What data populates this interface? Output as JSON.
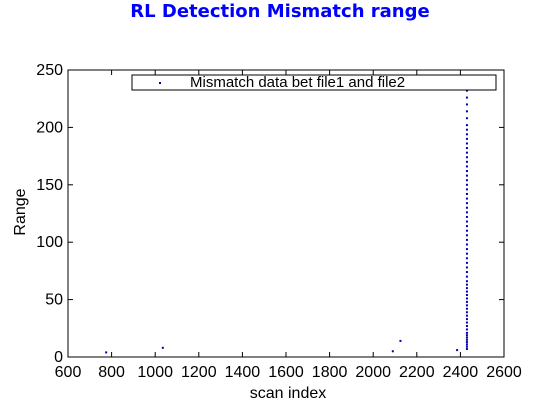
{
  "chart_data": {
    "type": "scatter",
    "title": "RL Detection Mismatch range",
    "xlabel": "scan index",
    "ylabel": "Range",
    "xlim": [
      600,
      2600
    ],
    "ylim": [
      0,
      250
    ],
    "xticks": [
      600,
      800,
      1000,
      1200,
      1400,
      1600,
      1800,
      2000,
      2200,
      2400,
      2600
    ],
    "yticks": [
      0,
      50,
      100,
      150,
      200,
      250
    ],
    "grid": false,
    "legend_position": "top",
    "colors": {
      "title": "#0000ff",
      "marker": "#0000aa"
    },
    "series": [
      {
        "name": "Mismatch data bet file1 and file2",
        "marker": "dot",
        "points": [
          [
            775,
            4
          ],
          [
            1035,
            8
          ],
          [
            2090,
            5
          ],
          [
            2125,
            14
          ],
          [
            2385,
            6
          ],
          [
            2430,
            7
          ],
          [
            2430,
            9
          ],
          [
            2430,
            11
          ],
          [
            2430,
            13
          ],
          [
            2430,
            15
          ],
          [
            2430,
            17
          ],
          [
            2430,
            19
          ],
          [
            2430,
            21
          ],
          [
            2430,
            24
          ],
          [
            2430,
            27
          ],
          [
            2430,
            30
          ],
          [
            2430,
            33
          ],
          [
            2430,
            36
          ],
          [
            2430,
            39
          ],
          [
            2430,
            42
          ],
          [
            2430,
            45
          ],
          [
            2430,
            48
          ],
          [
            2430,
            51
          ],
          [
            2430,
            54
          ],
          [
            2430,
            57
          ],
          [
            2430,
            60
          ],
          [
            2430,
            63
          ],
          [
            2430,
            66
          ],
          [
            2430,
            70
          ],
          [
            2430,
            74
          ],
          [
            2430,
            78
          ],
          [
            2430,
            82
          ],
          [
            2430,
            86
          ],
          [
            2430,
            90
          ],
          [
            2430,
            94
          ],
          [
            2430,
            98
          ],
          [
            2430,
            102
          ],
          [
            2430,
            106
          ],
          [
            2430,
            110
          ],
          [
            2430,
            114
          ],
          [
            2430,
            118
          ],
          [
            2430,
            122
          ],
          [
            2430,
            126
          ],
          [
            2430,
            130
          ],
          [
            2430,
            134
          ],
          [
            2430,
            138
          ],
          [
            2430,
            142
          ],
          [
            2430,
            146
          ],
          [
            2430,
            150
          ],
          [
            2430,
            154
          ],
          [
            2430,
            158
          ],
          [
            2430,
            162
          ],
          [
            2430,
            166
          ],
          [
            2430,
            170
          ],
          [
            2430,
            174
          ],
          [
            2430,
            178
          ],
          [
            2430,
            182
          ],
          [
            2430,
            186
          ],
          [
            2430,
            190
          ],
          [
            2430,
            194
          ],
          [
            2430,
            198
          ],
          [
            2430,
            202
          ],
          [
            2430,
            208
          ],
          [
            2430,
            214
          ],
          [
            2430,
            220
          ],
          [
            2430,
            226
          ],
          [
            2430,
            232
          ]
        ]
      }
    ]
  }
}
